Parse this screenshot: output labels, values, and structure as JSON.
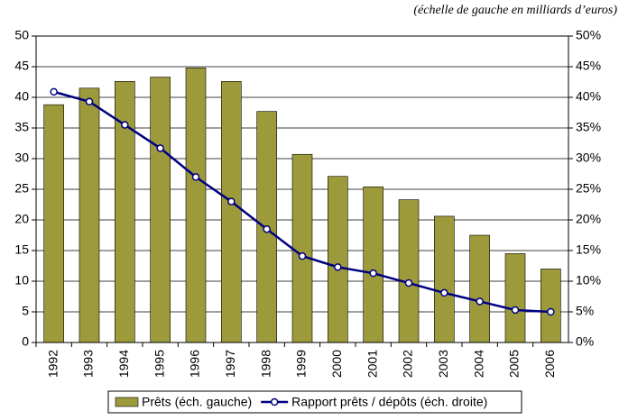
{
  "chart_data": {
    "type": "bar_line",
    "annotation": "(échelle de gauche en milliards d’euros)",
    "categories": [
      "1992",
      "1993",
      "1994",
      "1995",
      "1996",
      "1997",
      "1998",
      "1999",
      "2000",
      "2001",
      "2002",
      "2003",
      "2004",
      "2005",
      "2006"
    ],
    "series": [
      {
        "name": "Prêts (éch. gauche)",
        "type": "bar",
        "color": "#9c9a3a",
        "axis": "y",
        "values": [
          38.8,
          41.5,
          42.6,
          43.3,
          44.8,
          42.6,
          37.7,
          30.7,
          27.1,
          25.4,
          23.3,
          20.6,
          17.5,
          14.5,
          12.0
        ]
      },
      {
        "name": "Rapport prêts / dépôts (éch. droite)",
        "type": "line",
        "color": "#000080",
        "axis": "y2",
        "values": [
          40.9,
          39.3,
          35.5,
          31.7,
          27.0,
          23.0,
          18.5,
          14.1,
          12.3,
          11.3,
          9.7,
          8.1,
          6.7,
          5.3,
          5.0
        ]
      }
    ],
    "ylim": [
      0,
      50
    ],
    "yticks": [
      0,
      5,
      10,
      15,
      20,
      25,
      30,
      35,
      40,
      45,
      50
    ],
    "y2lim": [
      0,
      50
    ],
    "y2ticks": [
      {
        "value": 0,
        "label": "0%"
      },
      {
        "value": 5,
        "label": "5%"
      },
      {
        "value": 10,
        "label": "10%"
      },
      {
        "value": 15,
        "label": "15%"
      },
      {
        "value": 20,
        "label": "20%"
      },
      {
        "value": 25,
        "label": "25%"
      },
      {
        "value": 30,
        "label": "30%"
      },
      {
        "value": 35,
        "label": "35%"
      },
      {
        "value": 40,
        "label": "40%"
      },
      {
        "value": 45,
        "label": "45%"
      },
      {
        "value": 50,
        "label": "50%"
      }
    ],
    "grid": true,
    "legend": "bottom"
  }
}
